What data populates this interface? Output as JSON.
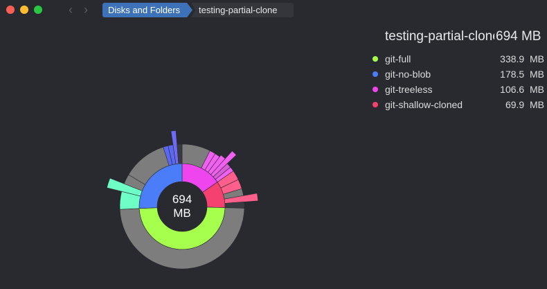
{
  "window": {
    "nav_back": "‹",
    "nav_forward": "›"
  },
  "breadcrumb": [
    "Disks and Folders",
    "testing-partial-clone"
  ],
  "info": {
    "title": "testing-partial-clone",
    "size": "694 MB",
    "items": [
      {
        "name": "git-full",
        "size": "338.9  MB",
        "color": "#a6ff4d"
      },
      {
        "name": "git-no-blob",
        "size": "178.5  MB",
        "color": "#4a7df7"
      },
      {
        "name": "git-treeless",
        "size": "106.6  MB",
        "color": "#ef45ef"
      },
      {
        "name": "git-shallow-cloned",
        "size": "69.9  MB",
        "color": "#f4416f"
      }
    ]
  },
  "chart_data": {
    "type": "sunburst",
    "center_label": [
      "694",
      "MB"
    ],
    "total": 694,
    "categories": [
      "git-full",
      "git-no-blob",
      "git-treeless",
      "git-shallow-cloned"
    ],
    "values": [
      338.9,
      178.5,
      106.6,
      69.9
    ],
    "colors": [
      "#a6ff4d",
      "#4a7df7",
      "#ef45ef",
      "#f4416f"
    ]
  }
}
